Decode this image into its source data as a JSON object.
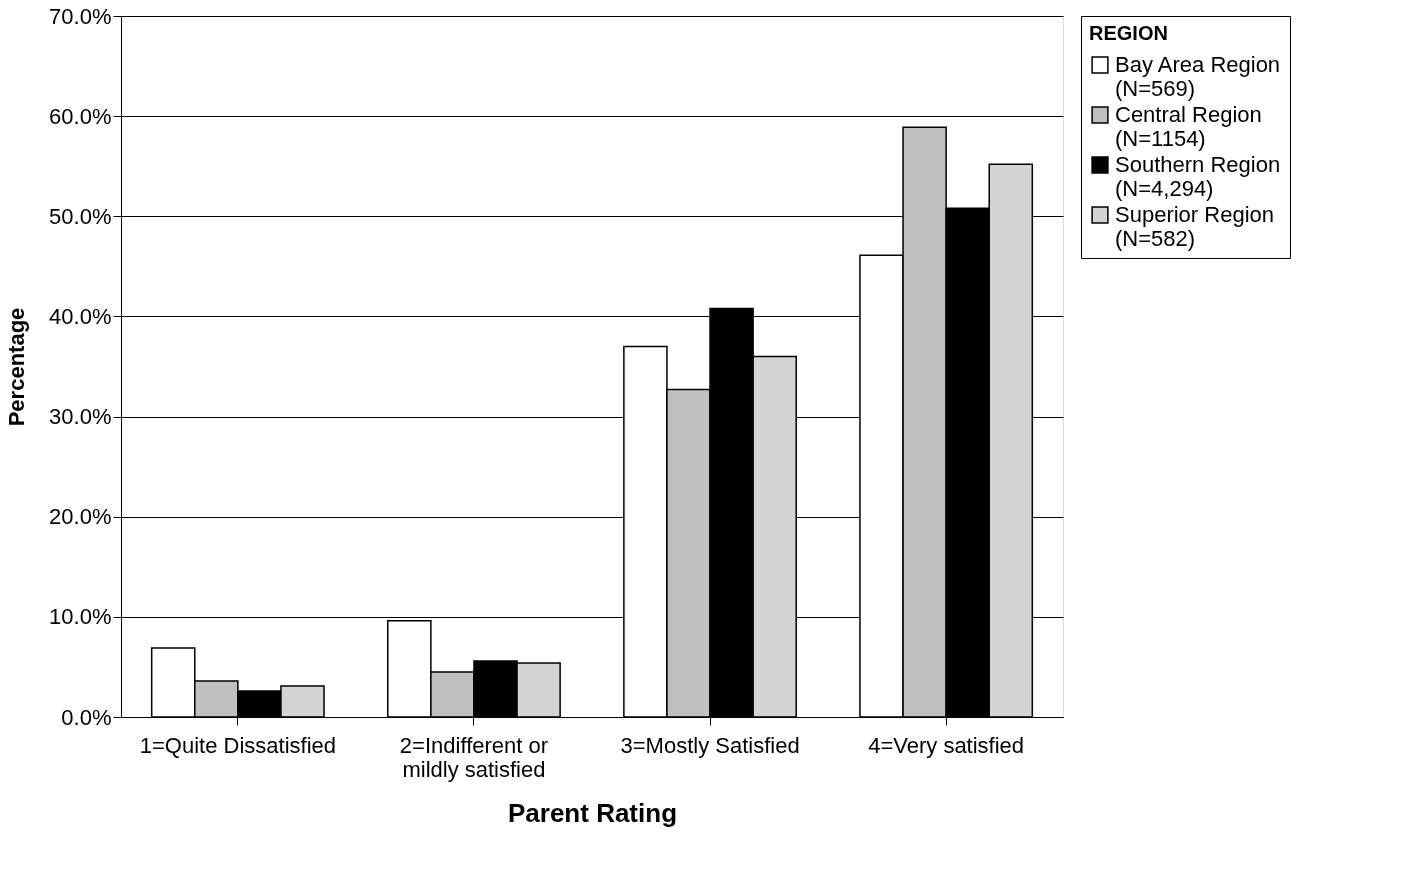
{
  "chart_data": {
    "type": "bar",
    "xlabel": "Parent Rating",
    "ylabel": "Percentage",
    "legend_title": "REGION",
    "categories": [
      "1=Quite Dissatisfied",
      "2=Indifferent or mildly satisfied",
      "3=Mostly Satisfied",
      "4=Very satisfied"
    ],
    "series": [
      {
        "name": "Bay Area Region (N=569)",
        "color": "#ffffff",
        "values": [
          6.9,
          9.6,
          37.0,
          46.1
        ]
      },
      {
        "name": "Central Region (N=1154)",
        "color": "#c0c0c0",
        "values": [
          3.6,
          4.5,
          32.7,
          58.9
        ]
      },
      {
        "name": "Southern Region (N=4,294)",
        "color": "#000000",
        "values": [
          2.6,
          5.6,
          40.8,
          50.8
        ]
      },
      {
        "name": "Superior Region (N=582)",
        "color": "#d4d4d4",
        "values": [
          3.1,
          5.4,
          36.0,
          55.2
        ]
      }
    ],
    "ylim": [
      0,
      70
    ],
    "yticks": [
      {
        "value": 0,
        "label": "0.0%"
      },
      {
        "value": 10,
        "label": "10.0%"
      },
      {
        "value": 20,
        "label": "20.0%"
      },
      {
        "value": 30,
        "label": "30.0%"
      },
      {
        "value": 40,
        "label": "40.0%"
      },
      {
        "value": 50,
        "label": "50.0%"
      },
      {
        "value": 60,
        "label": "60.0%"
      },
      {
        "value": 70,
        "label": "70.0%"
      }
    ],
    "grid": "y",
    "legend": "right"
  }
}
